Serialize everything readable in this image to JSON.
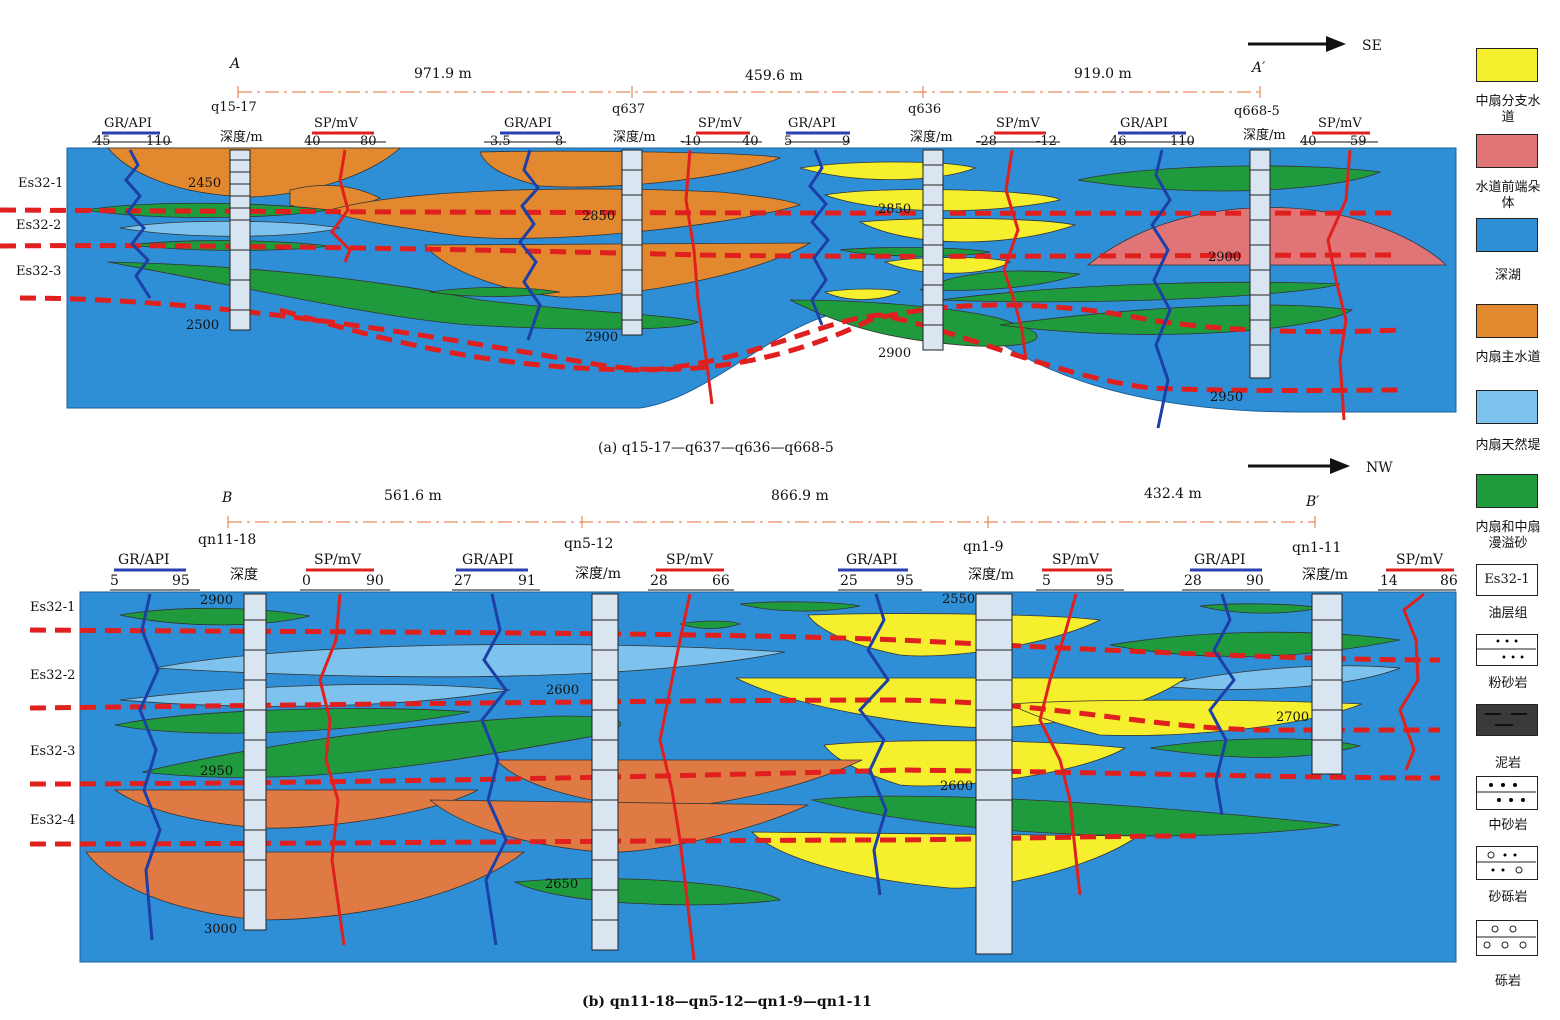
{
  "panel_a": {
    "caption": "(a) q15-17—q637—q636—q668-5",
    "section_start": "A",
    "section_end": "A′",
    "distances": [
      "971.9 m",
      "459.6 m",
      "919.0 m"
    ],
    "direction": "SE",
    "layers": [
      "Es32-1",
      "Es32-2",
      "Es32-3"
    ],
    "wells": [
      {
        "name": "q15-17",
        "depth_label": "深度/m",
        "gr_label": "GR/API",
        "gr_min": "45",
        "gr_max": "110",
        "sp_label": "SP/mV",
        "sp_min": "40",
        "sp_max": "80",
        "depths": [
          "2450",
          "2500"
        ]
      },
      {
        "name": "q637",
        "depth_label": "深度/m",
        "gr_label": "GR/API",
        "gr_min": "3.5",
        "gr_max": "8",
        "sp_label": "SP/mV",
        "sp_min": "-10",
        "sp_max": "40",
        "depths": [
          "2850",
          "2900"
        ]
      },
      {
        "name": "q636",
        "depth_label": "深度/m",
        "gr_label": "GR/API",
        "gr_min": "5",
        "gr_max": "9",
        "sp_label": "SP/mV",
        "sp_min": "-28",
        "sp_max": "-12",
        "depths": [
          "2850",
          "2900"
        ]
      },
      {
        "name": "q668-5",
        "depth_label": "深度/m",
        "gr_label": "GR/API",
        "gr_min": "46",
        "gr_max": "110",
        "sp_label": "SP/mV",
        "sp_min": "40",
        "sp_max": "59",
        "depths": [
          "2900",
          "2950"
        ]
      }
    ]
  },
  "panel_b": {
    "caption": "(b) qn11-18—qn5-12—qn1-9—qn1-11",
    "section_start": "B",
    "section_end": "B′",
    "distances": [
      "561.6 m",
      "866.9 m",
      "432.4 m"
    ],
    "direction": "NW",
    "layers": [
      "Es32-1",
      "Es32-2",
      "Es32-3",
      "Es32-4"
    ],
    "wells": [
      {
        "name": "qn11-18",
        "depth_label": "深度",
        "gr_label": "GR/API",
        "gr_min": "5",
        "gr_max": "95",
        "sp_label": "SP/mV",
        "sp_min": "0",
        "sp_max": "90",
        "depths": [
          "2900",
          "2950",
          "3000"
        ]
      },
      {
        "name": "qn5-12",
        "depth_label": "深度/m",
        "gr_label": "GR/API",
        "gr_min": "27",
        "gr_max": "91",
        "sp_label": "SP/mV",
        "sp_min": "28",
        "sp_max": "66",
        "depths": [
          "2600",
          "2650"
        ]
      },
      {
        "name": "qn1-9",
        "depth_label": "深度/m",
        "gr_label": "GR/API",
        "gr_min": "25",
        "gr_max": "95",
        "sp_label": "SP/mV",
        "sp_min": "5",
        "sp_max": "95",
        "depths": [
          "2550",
          "2600"
        ]
      },
      {
        "name": "qn1-11",
        "depth_label": "深度/m",
        "gr_label": "GR/API",
        "gr_min": "28",
        "gr_max": "90",
        "sp_label": "SP/mV",
        "sp_min": "14",
        "sp_max": "86",
        "depths": [
          "2700"
        ]
      }
    ]
  },
  "legend": [
    {
      "label": "中扇分支水道",
      "color": "#f5ef2e"
    },
    {
      "label": "水道前端朵体",
      "color": "#e07476"
    },
    {
      "label": "深湖",
      "color": "#2f8fd6"
    },
    {
      "label": "内扇主水道",
      "color": "#e2882e"
    },
    {
      "label": "内扇天然堤",
      "color": "#7ec3ee"
    },
    {
      "label": "内扇和中扇漫溢砂",
      "color": "#1f9a3c"
    },
    {
      "label": "油层组",
      "symbol": "Es32-1"
    },
    {
      "label": "粉砂岩",
      "pattern": "dots-small"
    },
    {
      "label": "泥岩",
      "pattern": "dark-dash"
    },
    {
      "label": "中砂岩",
      "pattern": "dots-large"
    },
    {
      "label": "砂砾岩",
      "pattern": "circle-dot"
    },
    {
      "label": "砾岩",
      "pattern": "circles"
    }
  ]
}
